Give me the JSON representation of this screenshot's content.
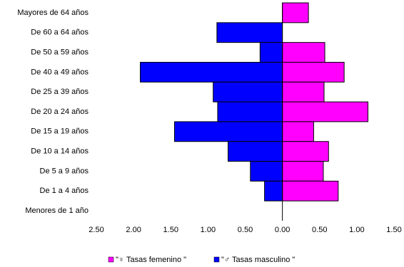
{
  "chart_data": {
    "type": "bar",
    "orientation": "horizontal",
    "categories": [
      "Mayores de 64 años",
      "De 60 a 64 años",
      "De 50 a 59 años",
      "De 40 a 49 años",
      "De 25 a 39 años",
      "De 20 a 24 años",
      "De 15 a 19 años",
      "De 10 a 14 años",
      "De 5 a 9 años",
      "De 1 a 4 años",
      "Menores de 1 año"
    ],
    "series": [
      {
        "name": "\"♀ Tasas femenino \"",
        "color": "#ff00ff",
        "values": [
          0.35,
          0,
          0.57,
          0.83,
          0.56,
          1.15,
          0.42,
          0.62,
          0.55,
          0.75,
          0
        ]
      },
      {
        "name": "\"♂ Tasas masculino \"",
        "color": "#0000ff",
        "values": [
          0,
          -0.88,
          -0.3,
          -1.91,
          -0.93,
          -0.87,
          -1.45,
          -0.73,
          -0.43,
          -0.24,
          0
        ]
      }
    ],
    "xlim": [
      -2.5,
      1.5
    ],
    "xticks": [
      {
        "value": -2.5,
        "label": "2.50"
      },
      {
        "value": -2,
        "label": "2.00"
      },
      {
        "value": -1.5,
        "label": "1.50"
      },
      {
        "value": -1,
        "label": "1.00"
      },
      {
        "value": -0.5,
        "label": "0.50"
      },
      {
        "value": 0,
        "label": "0.00"
      },
      {
        "value": 0.5,
        "label": "0.50"
      },
      {
        "value": 1,
        "label": "1.00"
      },
      {
        "value": 1.5,
        "label": "1.50"
      }
    ],
    "legend": "bottom"
  }
}
